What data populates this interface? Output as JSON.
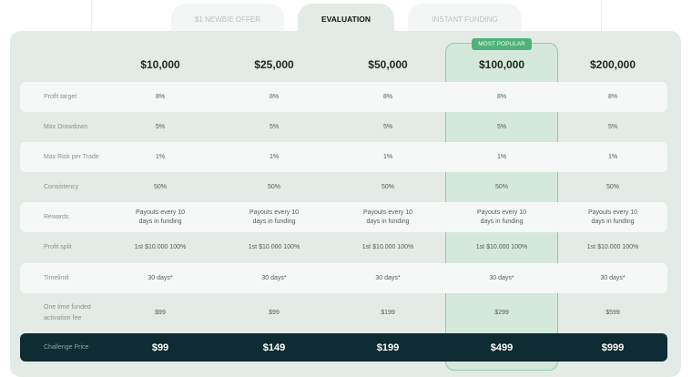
{
  "tabs": [
    {
      "label": "$1 NEWBIE OFFER",
      "active": false
    },
    {
      "label": "EVALUATION",
      "active": true
    },
    {
      "label": "INSTANT FUNDING",
      "active": false
    }
  ],
  "badge": "MOST POPULAR",
  "plans": [
    "$10,000",
    "$25,000",
    "$50,000",
    "$100,000",
    "$200,000"
  ],
  "rows": [
    {
      "label": "Profit target",
      "values": [
        "8%",
        "8%",
        "8%",
        "8%",
        "8%"
      ]
    },
    {
      "label": "Max Drawdown",
      "values": [
        "5%",
        "5%",
        "5%",
        "5%",
        "5%"
      ]
    },
    {
      "label": "Max Risk per Trade",
      "values": [
        "1%",
        "1%",
        "1%",
        "1%",
        "1%"
      ]
    },
    {
      "label": "Consistency",
      "values": [
        "50%",
        "50%",
        "50%",
        "50%",
        "50%"
      ]
    },
    {
      "label": "Rewards",
      "values": [
        "Payouts every 10 days in funding",
        "Payouts every 10 days in funding",
        "Payouts every 10 days in funding",
        "Payouts every 10 days in funding",
        "Payouts every 10 days in funding"
      ]
    },
    {
      "label": "Profit split",
      "values": [
        "1st $10.000 100%",
        "1st $10.000 100%",
        "1st $10.000 100%",
        "1st $10.000 100%",
        "1st $10.000 100%"
      ]
    },
    {
      "label": "Timelimit",
      "values": [
        "30 days*",
        "30 days*",
        "30 days*",
        "30 days*",
        "30 days*"
      ]
    },
    {
      "label": "One time funded activation fee",
      "values": [
        "$99",
        "$99",
        "$199",
        "$299",
        "$599"
      ]
    }
  ],
  "price_row": {
    "label": "Challenge Price",
    "values": [
      "$99",
      "$149",
      "$199",
      "$499",
      "$999"
    ]
  },
  "colors": {
    "accent": "#4fb27a",
    "dark": "#0f2b33",
    "panel": "#e4ebe7"
  }
}
